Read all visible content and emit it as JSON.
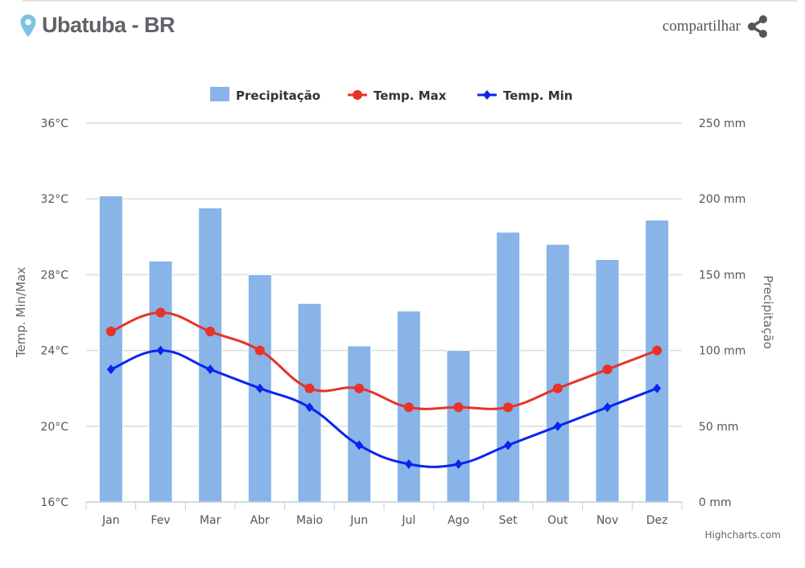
{
  "header": {
    "title": "Ubatuba - BR",
    "share_label": "compartilhar",
    "location_icon": "map-pin-icon",
    "share_icon": "share-icon",
    "pin_color": "#7fc0e6"
  },
  "credit": "Highcharts.com",
  "chart_data": {
    "type": "bar+line",
    "categories": [
      "Jan",
      "Fev",
      "Mar",
      "Abr",
      "Maio",
      "Jun",
      "Jul",
      "Ago",
      "Set",
      "Out",
      "Nov",
      "Dez"
    ],
    "series": [
      {
        "name": "Precipitação",
        "type": "bar",
        "axis": "right",
        "color": "#88b4e7",
        "values": [
          202,
          159,
          194,
          150,
          131,
          103,
          126,
          100,
          178,
          170,
          160,
          186
        ]
      },
      {
        "name": "Temp. Max",
        "type": "line",
        "axis": "left",
        "color": "#e8322a",
        "marker": "circle",
        "values": [
          25,
          26,
          25,
          24,
          22,
          22,
          21,
          21,
          21,
          22,
          23,
          24
        ]
      },
      {
        "name": "Temp. Min",
        "type": "line",
        "axis": "left",
        "color": "#0a24f0",
        "marker": "diamond",
        "values": [
          23,
          24,
          23,
          22,
          21,
          19,
          18,
          18,
          19,
          20,
          21,
          22
        ]
      }
    ],
    "left_axis": {
      "title": "Temp. Min/Max",
      "range": [
        16,
        36
      ],
      "ticks": [
        "16°C",
        "20°C",
        "24°C",
        "28°C",
        "32°C",
        "36°C"
      ]
    },
    "right_axis": {
      "title": "Precipitação",
      "range": [
        0,
        250
      ],
      "ticks": [
        "0 mm",
        "50 mm",
        "100 mm",
        "150 mm",
        "200 mm",
        "250 mm"
      ]
    },
    "grid": true,
    "legend": "top-center"
  }
}
